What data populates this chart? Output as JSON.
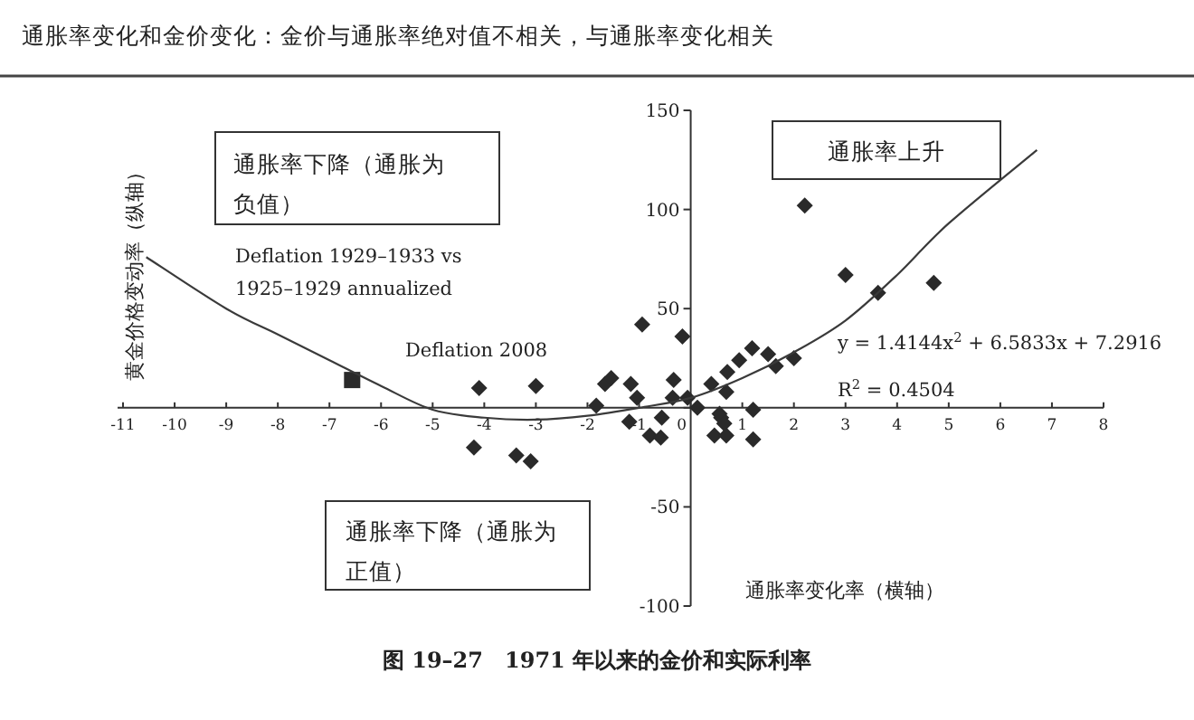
{
  "chart_data": {
    "type": "scatter",
    "title": "通胀率变化和金价变化：金价与通胀率绝对值不相关，与通胀率变化相关",
    "xlabel": "通胀率变化率（横轴）",
    "ylabel": "黄金价格变动率（纵轴）",
    "xlim": [
      -11,
      8
    ],
    "ylim": [
      -100,
      150
    ],
    "xticks": [
      -11,
      -10,
      -9,
      -8,
      -7,
      -6,
      -5,
      -4,
      -3,
      -2,
      -1,
      0,
      1,
      2,
      3,
      4,
      5,
      6,
      7,
      8
    ],
    "yticks": [
      -100,
      -50,
      {
        "value": 0,
        "label": null
      },
      50,
      100,
      150
    ],
    "grid": false,
    "series": [
      {
        "type": "scatter",
        "marker": "diamond",
        "color": "#2a2a2a",
        "x": [
          -4.1,
          -4.2,
          -3.0,
          -3.38,
          -3.1,
          -1.83,
          -1.66,
          -1.54,
          -1.16,
          -1.04,
          -1.19,
          -0.94,
          -0.79,
          -0.58,
          -0.56,
          -0.33,
          -0.35,
          -0.16,
          -0.06,
          0.13,
          0.4,
          0.46,
          0.56,
          0.59,
          0.69,
          0.71,
          0.69,
          0.65,
          0.94,
          1.19,
          1.21,
          1.21,
          1.5,
          1.65,
          2.0,
          2.21,
          3.0,
          3.63,
          4.71
        ],
        "values": [
          10,
          -20,
          11,
          -24,
          -27,
          1,
          12,
          15,
          12,
          5,
          -7,
          42,
          -14,
          -15,
          -5,
          14,
          5,
          36,
          5,
          0,
          12,
          -14,
          -3,
          -5,
          8,
          18,
          -14,
          -8,
          24,
          30,
          -1,
          -16,
          27,
          21,
          25,
          102,
          67,
          58,
          63
        ]
      },
      {
        "type": "scatter",
        "marker": "square",
        "color": "#2a2a2a",
        "x": [
          -6.56
        ],
        "values": [
          14
        ]
      },
      {
        "type": "line",
        "marker": "none",
        "line_style": "solid",
        "color": "#3a3a3a",
        "x": [
          -10.55,
          -9,
          -8,
          -7,
          -6,
          -5,
          -4,
          -3,
          -2,
          -1,
          0,
          1,
          2,
          3,
          4,
          5,
          6.71
        ],
        "values": [
          76,
          50,
          37,
          24,
          11,
          -1,
          -5,
          -6,
          -4,
          0,
          5,
          15,
          28,
          44,
          67,
          93,
          130
        ]
      }
    ],
    "annotations": [
      "通胀率下降（通胀为负值）",
      "通胀率上升",
      "通胀率下降（通胀为正值）",
      "Deflation 1929–1933 vs 1925–1929 annualized",
      "Deflation 2008",
      "y = 1.4144x$^{2}$ + 6.5833x + 7.2916",
      "R$^{2}$ = 0.4504",
      "图 19–27　1971 年以来的金价和实际利率"
    ]
  }
}
